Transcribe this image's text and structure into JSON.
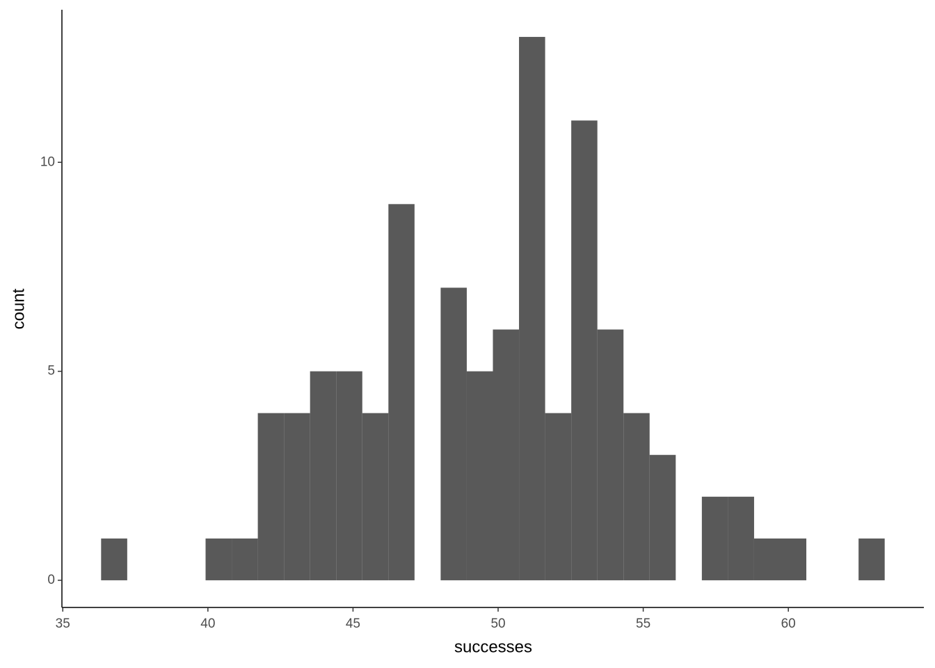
{
  "chart_data": {
    "type": "histogram",
    "x_label": "successes",
    "y_label": "count",
    "bins": [
      36.32,
      37.22,
      38.12,
      39.02,
      39.92,
      40.82,
      41.72,
      42.62,
      43.52,
      44.42,
      45.32,
      46.22,
      47.12,
      48.02,
      48.92,
      49.82,
      50.72,
      51.62,
      52.52,
      53.42,
      54.32,
      55.22,
      56.12,
      57.02,
      57.92,
      58.82,
      59.72,
      60.62,
      61.52,
      62.42,
      63.32
    ],
    "values": [
      1,
      0,
      0,
      0,
      1,
      1,
      4,
      4,
      5,
      5,
      4,
      9,
      0,
      7,
      5,
      6,
      13,
      4,
      11,
      6,
      4,
      3,
      0,
      2,
      2,
      1,
      1,
      0,
      0,
      1
    ],
    "color": "#595959",
    "xlim": [
      34.97,
      64.67
    ],
    "ylim": [
      -0.65,
      13.65
    ],
    "xticks": [
      35,
      40,
      45,
      50,
      55,
      60
    ],
    "yticks": [
      0,
      5,
      10
    ]
  }
}
